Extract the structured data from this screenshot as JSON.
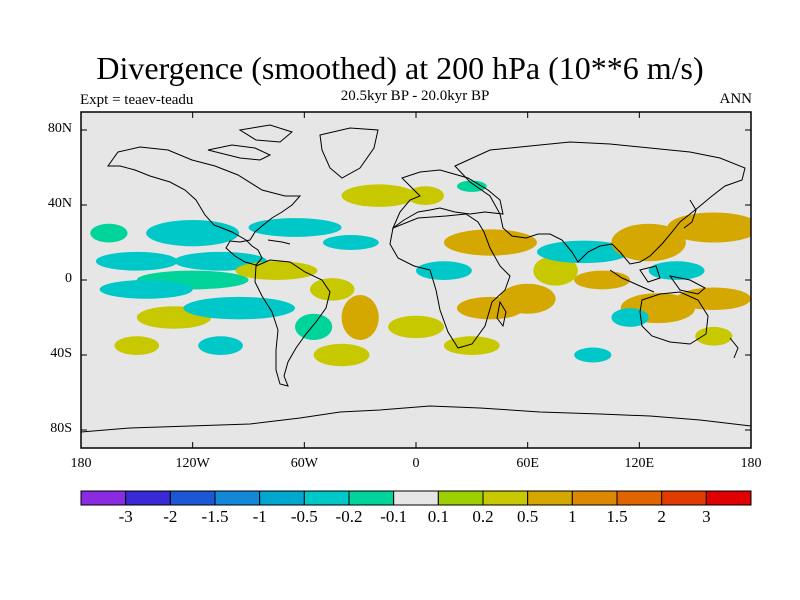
{
  "title": "Divergence (smoothed) at 200 hPa (10**6 m/s)",
  "subtitle": "20.5kyr BP - 20.0kyr BP",
  "experiment": "Expt = teaev-teadu",
  "season": "ANN",
  "map": {
    "projection": "cylindrical-equidistant",
    "lon_range": [
      -180,
      180
    ],
    "lat_range": [
      -90,
      90
    ],
    "background_color": "#e6e6e6",
    "coastline_color": "#000000"
  },
  "axes": {
    "y_ticks": [
      {
        "label": "80N",
        "lat": 80
      },
      {
        "label": "40N",
        "lat": 40
      },
      {
        "label": "0",
        "lat": 0
      },
      {
        "label": "40S",
        "lat": -40
      },
      {
        "label": "80S",
        "lat": -80
      }
    ],
    "x_ticks": [
      {
        "label": "180",
        "lon": -180
      },
      {
        "label": "120W",
        "lon": -120
      },
      {
        "label": "60W",
        "lon": -60
      },
      {
        "label": "0",
        "lon": 0
      },
      {
        "label": "60E",
        "lon": 60
      },
      {
        "label": "120E",
        "lon": 120
      },
      {
        "label": "180",
        "lon": 180
      }
    ]
  },
  "colorbar": {
    "colors": [
      "#8a2be2",
      "#3a2ad6",
      "#1c58d4",
      "#1488d8",
      "#00a8d0",
      "#00c8c8",
      "#00d49a",
      "#e6e6e6",
      "#9ccf00",
      "#c8c800",
      "#d4a800",
      "#dc8800",
      "#e06400",
      "#e03c00",
      "#e00000"
    ],
    "labels": [
      "-3",
      "-2",
      "-1.5",
      "-1",
      "-0.5",
      "-0.2",
      "-0.1",
      "0.1",
      "0.2",
      "0.5",
      "1",
      "1.5",
      "2",
      "3"
    ]
  },
  "chart_data": {
    "type": "map-contour",
    "variable": "Divergence (smoothed) at 200 hPa",
    "units": "10**6 m/s",
    "levels": [
      -3,
      -2,
      -1.5,
      -1,
      -0.5,
      -0.2,
      -0.1,
      0.1,
      0.2,
      0.5,
      1,
      1.5,
      2,
      3
    ],
    "features": [
      {
        "lon": -165,
        "lat": 25,
        "rx": 10,
        "ry": 5,
        "value": -0.15
      },
      {
        "lon": -150,
        "lat": 10,
        "rx": 22,
        "ry": 5,
        "value": -0.3
      },
      {
        "lon": -120,
        "lat": 25,
        "rx": 25,
        "ry": 7,
        "value": -0.3
      },
      {
        "lon": -105,
        "lat": 10,
        "rx": 25,
        "ry": 5,
        "value": -0.3
      },
      {
        "lon": -120,
        "lat": 0,
        "rx": 30,
        "ry": 5,
        "value": -0.15
      },
      {
        "lon": -145,
        "lat": -5,
        "rx": 25,
        "ry": 5,
        "value": -0.3
      },
      {
        "lon": -130,
        "lat": -20,
        "rx": 20,
        "ry": 6,
        "value": 0.3
      },
      {
        "lon": -95,
        "lat": -15,
        "rx": 30,
        "ry": 6,
        "value": -0.3
      },
      {
        "lon": -150,
        "lat": -35,
        "rx": 12,
        "ry": 5,
        "value": 0.3
      },
      {
        "lon": -105,
        "lat": -35,
        "rx": 12,
        "ry": 5,
        "value": -0.3
      },
      {
        "lon": -75,
        "lat": 5,
        "rx": 22,
        "ry": 5,
        "value": 0.3
      },
      {
        "lon": -65,
        "lat": 28,
        "rx": 25,
        "ry": 5,
        "value": -0.3
      },
      {
        "lon": -35,
        "lat": 20,
        "rx": 15,
        "ry": 4,
        "value": -0.3
      },
      {
        "lon": -45,
        "lat": -5,
        "rx": 12,
        "ry": 6,
        "value": 0.3
      },
      {
        "lon": -55,
        "lat": -25,
        "rx": 10,
        "ry": 7,
        "value": -0.15
      },
      {
        "lon": -30,
        "lat": -20,
        "rx": 10,
        "ry": 12,
        "value": 0.6
      },
      {
        "lon": -40,
        "lat": -40,
        "rx": 15,
        "ry": 6,
        "value": 0.3
      },
      {
        "lon": -20,
        "lat": 45,
        "rx": 20,
        "ry": 6,
        "value": 0.3
      },
      {
        "lon": 5,
        "lat": 45,
        "rx": 10,
        "ry": 5,
        "value": 0.3
      },
      {
        "lon": 30,
        "lat": 50,
        "rx": 8,
        "ry": 3,
        "value": -0.15
      },
      {
        "lon": 40,
        "lat": 20,
        "rx": 25,
        "ry": 7,
        "value": 0.6
      },
      {
        "lon": 15,
        "lat": 5,
        "rx": 15,
        "ry": 5,
        "value": -0.3
      },
      {
        "lon": 0,
        "lat": -25,
        "rx": 15,
        "ry": 6,
        "value": 0.3
      },
      {
        "lon": 40,
        "lat": -15,
        "rx": 18,
        "ry": 6,
        "value": 0.6
      },
      {
        "lon": 30,
        "lat": -35,
        "rx": 15,
        "ry": 5,
        "value": 0.3
      },
      {
        "lon": 60,
        "lat": -10,
        "rx": 15,
        "ry": 8,
        "value": 0.6
      },
      {
        "lon": 75,
        "lat": 5,
        "rx": 12,
        "ry": 8,
        "value": 0.3
      },
      {
        "lon": 90,
        "lat": 15,
        "rx": 25,
        "ry": 6,
        "value": -0.3
      },
      {
        "lon": 100,
        "lat": 0,
        "rx": 15,
        "ry": 5,
        "value": 0.6
      },
      {
        "lon": 125,
        "lat": 20,
        "rx": 20,
        "ry": 10,
        "value": 0.6
      },
      {
        "lon": 140,
        "lat": 5,
        "rx": 15,
        "ry": 5,
        "value": -0.3
      },
      {
        "lon": 160,
        "lat": 28,
        "rx": 25,
        "ry": 8,
        "value": 0.6
      },
      {
        "lon": 130,
        "lat": -15,
        "rx": 20,
        "ry": 8,
        "value": 0.6
      },
      {
        "lon": 115,
        "lat": -20,
        "rx": 10,
        "ry": 5,
        "value": -0.3
      },
      {
        "lon": 160,
        "lat": -10,
        "rx": 20,
        "ry": 6,
        "value": 0.6
      },
      {
        "lon": 160,
        "lat": -30,
        "rx": 10,
        "ry": 5,
        "value": 0.3
      },
      {
        "lon": 95,
        "lat": -40,
        "rx": 10,
        "ry": 4,
        "value": -0.3
      }
    ]
  }
}
